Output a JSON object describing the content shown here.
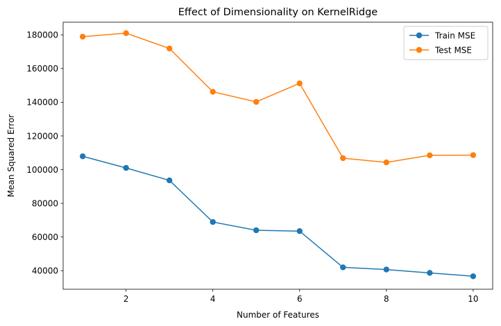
{
  "chart_data": {
    "type": "line",
    "title": "Effect of Dimensionality on KernelRidge",
    "xlabel": "Number of Features",
    "ylabel": "Mean Squared Error",
    "xlim": [
      0.55,
      10.45
    ],
    "ylim": [
      29000,
      187500
    ],
    "xticks": [
      2,
      4,
      6,
      8,
      10
    ],
    "yticks": [
      40000,
      60000,
      80000,
      100000,
      120000,
      140000,
      160000,
      180000
    ],
    "grid": false,
    "legend_position": "top-right",
    "x": [
      1,
      2,
      3,
      4,
      5,
      6,
      7,
      8,
      9,
      10
    ],
    "series": [
      {
        "name": "Train MSE",
        "color": "#1f77b4",
        "marker": "circle",
        "values": [
          107900,
          101000,
          93600,
          68900,
          64000,
          63500,
          42000,
          40700,
          38700,
          36700
        ]
      },
      {
        "name": "Test MSE",
        "color": "#ff7f0e",
        "marker": "circle",
        "values": [
          178900,
          181000,
          171900,
          146200,
          140200,
          151200,
          106800,
          104300,
          108500,
          108600
        ]
      }
    ]
  }
}
